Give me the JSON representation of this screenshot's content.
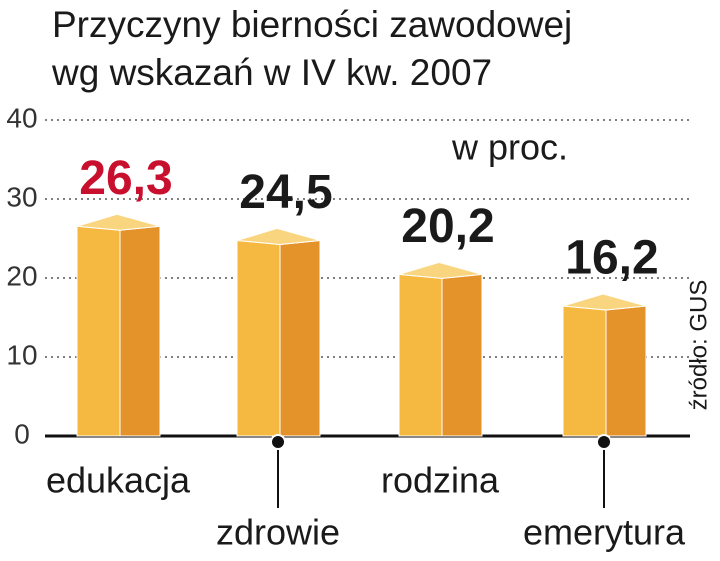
{
  "chart_data": {
    "type": "bar3d",
    "title": "Przyczyny bierności zawodowej",
    "subtitle": "wg wskazań w IV kw. 2007",
    "unit_label": "w proc.",
    "source": "źródło: GUS",
    "categories": [
      "edukacja",
      "zdrowie",
      "rodzina",
      "emerytura"
    ],
    "values": [
      26.3,
      24.5,
      20.2,
      16.2
    ],
    "value_labels": [
      "26,3",
      "24,5",
      "20,2",
      "16,2"
    ],
    "label_colors": [
      "#c8102e",
      "#1a1a1a",
      "#1a1a1a",
      "#1a1a1a"
    ],
    "colors": {
      "front": "#f5b942",
      "side": "#e4922a",
      "top": "#fad57f"
    },
    "ylim": [
      0,
      40
    ],
    "yticks": [
      0,
      10,
      20,
      30,
      40
    ],
    "grid": true
  }
}
